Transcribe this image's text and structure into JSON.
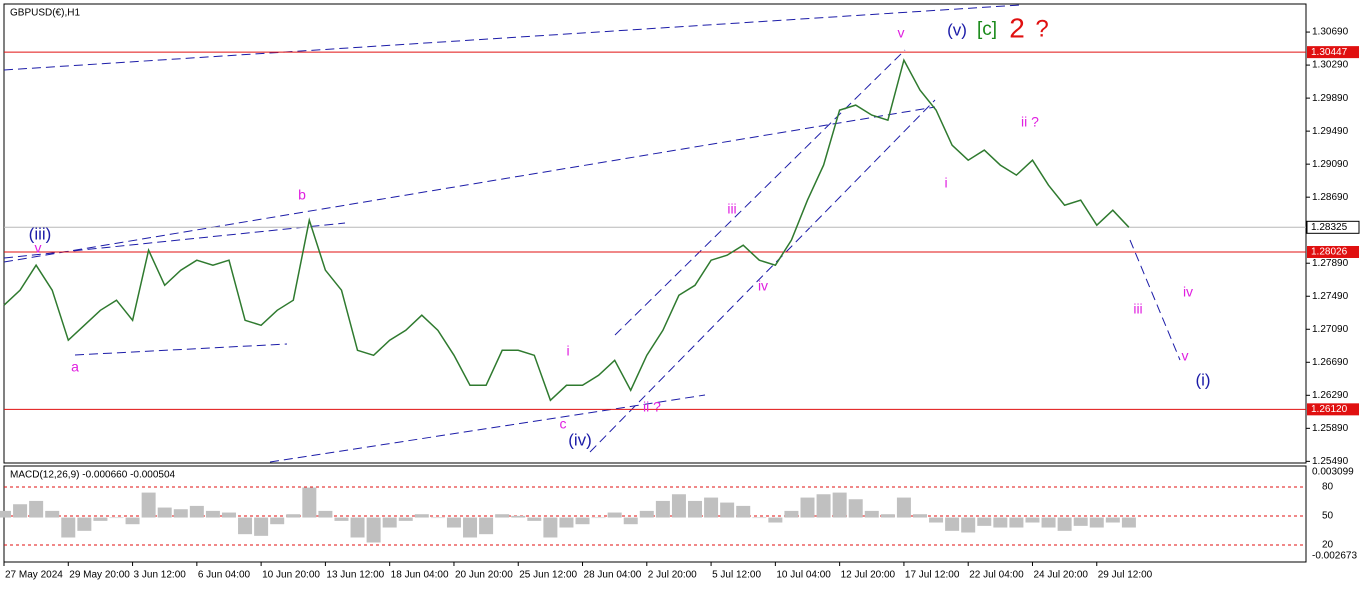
{
  "chart_data": {
    "type": "line",
    "title": "GBPUSD(€),H1",
    "color": "#2f7a2f",
    "categories": [
      "27 May 2024",
      null,
      null,
      null,
      "29 May 20:00",
      null,
      null,
      null,
      "3 Jun 12:00",
      null,
      null,
      null,
      "6 Jun 04:00",
      null,
      null,
      null,
      "10 Jun 20:00",
      null,
      null,
      null,
      "13 Jun 12:00",
      null,
      null,
      null,
      "18 Jun 04:00",
      null,
      null,
      null,
      "20 Jun 20:00",
      null,
      null,
      null,
      "25 Jun 12:00",
      null,
      null,
      null,
      "28 Jun 04:00",
      null,
      null,
      null,
      "2 Jul 20:00",
      null,
      null,
      null,
      "5 Jul 12:00",
      null,
      null,
      null,
      "10 Jul 04:00",
      null,
      null,
      null,
      "12 Jul 20:00",
      null,
      null,
      null,
      "17 Jul 12:00",
      null,
      null,
      null,
      "22 Jul 04:00",
      null,
      null,
      null,
      "24 Jul 20:00",
      null,
      null,
      null,
      "29 Jul 12:00",
      null,
      null
    ],
    "values": [
      1.27381,
      1.27563,
      1.27866,
      1.27563,
      1.26957,
      1.27138,
      1.2732,
      1.27442,
      1.27199,
      1.28048,
      1.27623,
      1.27805,
      1.27926,
      1.27866,
      1.27926,
      1.27199,
      1.27138,
      1.2732,
      1.27442,
      1.28411,
      1.27805,
      1.27563,
      1.26835,
      1.26775,
      1.26957,
      1.27078,
      1.2726,
      1.27078,
      1.26775,
      1.26411,
      1.26411,
      1.26835,
      1.26835,
      1.26775,
      1.2623,
      1.26411,
      1.26411,
      1.26532,
      1.26714,
      1.26351,
      1.26775,
      1.27078,
      1.27502,
      1.27623,
      1.27926,
      1.27987,
      1.28108,
      1.27926,
      1.27866,
      1.28169,
      1.28654,
      1.29078,
      1.29745,
      1.29805,
      1.29684,
      1.29623,
      1.30351,
      1.29987,
      1.29745,
      1.2932,
      1.29138,
      1.2926,
      1.29078,
      1.28957,
      1.29138,
      1.28835,
      1.28593,
      1.28654,
      1.28351,
      1.28532,
      1.28325
    ],
    "ylim": [
      1.2547,
      1.3103
    ],
    "yticks": [
      {
        "value": 1.3069,
        "label": "1.30690"
      },
      {
        "value": 1.3029,
        "label": "1.30290"
      },
      {
        "value": 1.2989,
        "label": "1.29890"
      },
      {
        "value": 1.2949,
        "label": "1.29490"
      },
      {
        "value": 1.2909,
        "label": "1.29090"
      },
      {
        "value": 1.2869,
        "label": "1.28690"
      },
      {
        "value": 1.2789,
        "label": "1.27890"
      },
      {
        "value": 1.2749,
        "label": "1.27490"
      },
      {
        "value": 1.2709,
        "label": "1.27090"
      },
      {
        "value": 1.2669,
        "label": "1.26690"
      },
      {
        "value": 1.2629,
        "label": "1.26290"
      },
      {
        "value": 1.2589,
        "label": "1.25890"
      },
      {
        "value": 1.2549,
        "label": "1.25490"
      }
    ],
    "levels": [
      {
        "value": 1.30447,
        "label": "1.30447",
        "color": "#e01010"
      },
      {
        "value": 1.28026,
        "label": "1.28026",
        "color": "#e01010"
      },
      {
        "value": 1.2612,
        "label": "1.26120",
        "color": "#e01010"
      }
    ],
    "current": {
      "value": 1.28325,
      "label": "1.28325",
      "color": "#b8b8b8"
    },
    "annotations": [
      {
        "text": "(iii)",
        "color": "#1c1ca8"
      },
      {
        "text": "v",
        "color": "#e020e0"
      },
      {
        "text": "a",
        "color": "#e020e0"
      },
      {
        "text": "b",
        "color": "#e020e0"
      },
      {
        "text": "c",
        "color": "#e020e0"
      },
      {
        "text": "(iv)",
        "color": "#1c1ca8"
      },
      {
        "text": "i",
        "color": "#e020e0"
      },
      {
        "text": "ii ?",
        "color": "#e020e0"
      },
      {
        "text": "iii",
        "color": "#e020e0"
      },
      {
        "text": "iv",
        "color": "#e020e0"
      },
      {
        "text": "v",
        "color": "#e020e0"
      },
      {
        "text": "(v)",
        "color": "#1c1ca8"
      },
      {
        "text": "[c]",
        "color": "#1a8a1a"
      },
      {
        "text": "2",
        "color": "#e01010"
      },
      {
        "text": "?",
        "color": "#e01010"
      },
      {
        "text": "ii ?",
        "color": "#e020e0"
      },
      {
        "text": "i",
        "color": "#e020e0"
      },
      {
        "text": "iii",
        "color": "#e020e0"
      },
      {
        "text": "iv",
        "color": "#e020e0"
      },
      {
        "text": "v",
        "color": "#e020e0"
      },
      {
        "text": "(i)",
        "color": "#1c1ca8"
      }
    ],
    "indicator": {
      "title": "MACD(12,26,9) -0.000660 -0.000504",
      "color": "#c0c0c0",
      "ylim": [
        -0.002673,
        0.003099
      ],
      "yticks": [
        {
          "value": 0.003099,
          "label": "0.003099"
        },
        {
          "value": -0.002673,
          "label": "-0.002673"
        }
      ],
      "values": [
        0.0004,
        0.0008,
        0.001,
        0.0004,
        -0.0012,
        -0.0008,
        -0.0002,
        0,
        -0.0004,
        0.0015,
        0.0006,
        0.0005,
        0.0007,
        0.0004,
        0.0003,
        -0.001,
        -0.0011,
        -0.0004,
        0.0002,
        0.0018,
        0.0004,
        -0.0002,
        -0.0012,
        -0.0015,
        -0.0006,
        -0.0002,
        0.0002,
        0,
        -0.0006,
        -0.0012,
        -0.001,
        0.0002,
        0.0001,
        -0.0002,
        -0.0012,
        -0.0006,
        -0.0004,
        0,
        0.0003,
        -0.0004,
        0.0004,
        0.001,
        0.0014,
        0.001,
        0.0012,
        0.0009,
        0.0007,
        0,
        -0.0003,
        0.0004,
        0.0012,
        0.0014,
        0.0015,
        0.0011,
        0.0004,
        0.0002,
        0.0012,
        0.0002,
        -0.0003,
        -0.0008,
        -0.0009,
        -0.0005,
        -0.0006,
        -0.0006,
        -0.0003,
        -0.0006,
        -0.0008,
        -0.0005,
        -0.0006,
        -0.0003,
        -0.0006
      ],
      "level_lim": [
        2.4,
        101.7
      ],
      "level_ticks": [
        80,
        50,
        20
      ],
      "level_color": "#e01010"
    }
  }
}
